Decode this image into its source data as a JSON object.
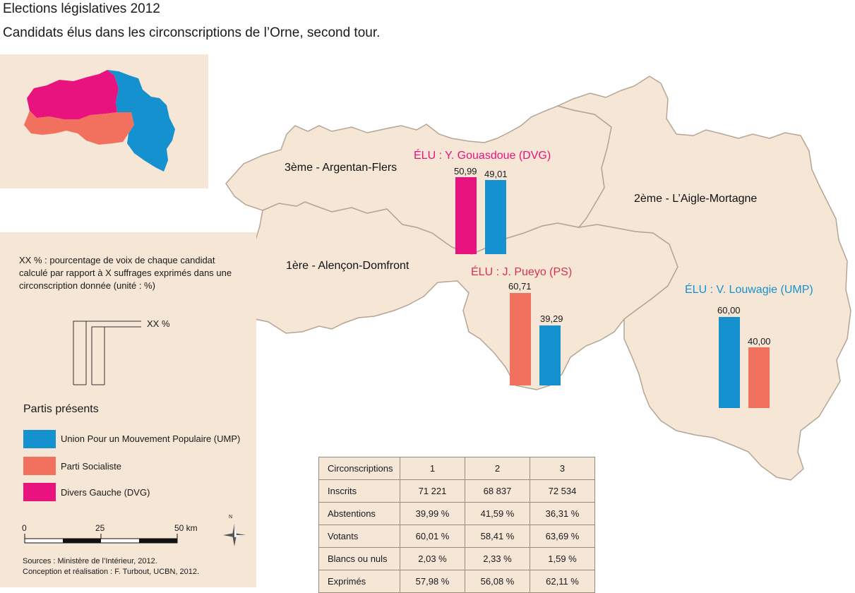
{
  "header": {
    "title": "Elections législatives 2012",
    "subtitle": "Candidats élus dans les circonscriptions de l’Orne, second tour."
  },
  "colors": {
    "ump": "#1691cf",
    "ps": "#f2705e",
    "dvg": "#e8137f",
    "land": "#f5e6d6",
    "border": "#b4a594"
  },
  "circonscriptions": [
    {
      "label": "1ère - Alençon-Domfront",
      "elu": "ÉLU : J. Pueyo (PS)",
      "elu_party": "ps",
      "bars": [
        {
          "party": "ps",
          "value": 60.71,
          "label": "60,71"
        },
        {
          "party": "ump",
          "value": 39.29,
          "label": "39,29"
        }
      ]
    },
    {
      "label": "2ème - L’Aigle-Mortagne",
      "elu": "ÉLU : V. Louwagie (UMP)",
      "elu_party": "ump",
      "bars": [
        {
          "party": "ump",
          "value": 60.0,
          "label": "60,00"
        },
        {
          "party": "ps",
          "value": 40.0,
          "label": "40,00"
        }
      ]
    },
    {
      "label": "3ème - Argentan-Flers",
      "elu": "ÉLU : Y. Gouasdoue (DVG)",
      "elu_party": "dvg",
      "bars": [
        {
          "party": "dvg",
          "value": 50.99,
          "label": "50,99"
        },
        {
          "party": "ump",
          "value": 49.01,
          "label": "49,01"
        }
      ]
    }
  ],
  "legend": {
    "note": "XX % : pourcentage de voix de chaque candidat calculé par rapport à X suffrages exprimés dans une circonscription donnée (unité : %)",
    "xx": "XX %",
    "parties_title": "Partis présents",
    "parties": [
      {
        "key": "ump",
        "label": "Union Pour un Mouvement Populaire (UMP)"
      },
      {
        "key": "ps",
        "label": "Parti Socialiste"
      },
      {
        "key": "dvg",
        "label": "Divers Gauche (DVG)"
      }
    ],
    "scale": {
      "t0": "0",
      "t1": "25",
      "t2": "50 km"
    },
    "north": "N",
    "sources": "Sources : Ministère de l’Intérieur, 2012.",
    "credits": "Conception et réalisation : F. Turbout, UCBN, 2012."
  },
  "table": {
    "headers": [
      "Circonscriptions",
      "1",
      "2",
      "3"
    ],
    "rows": [
      [
        "Inscrits",
        "71 221",
        "68 837",
        "72 534"
      ],
      [
        "Abstentions",
        "39,99 %",
        "41,59 %",
        "36,31 %"
      ],
      [
        "Votants",
        "60,01 %",
        "58,41 %",
        "63,69 %"
      ],
      [
        "Blancs ou nuls",
        "2,03 %",
        "2,33 %",
        "1,59 %"
      ],
      [
        "Exprimés",
        "57,98 %",
        "56,08 %",
        "62,11 %"
      ]
    ]
  }
}
